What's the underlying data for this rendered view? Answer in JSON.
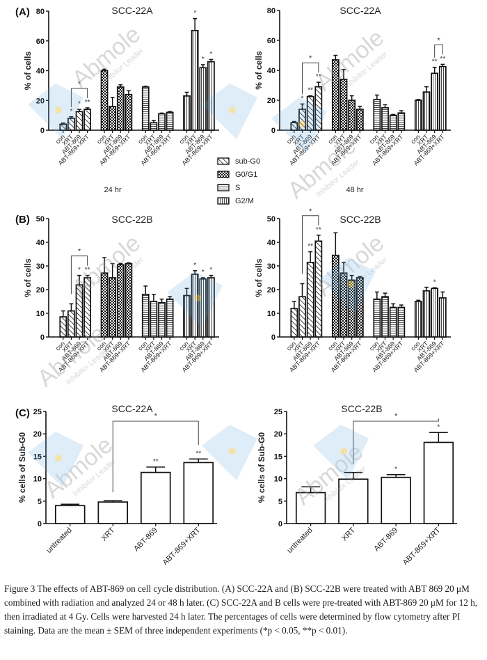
{
  "figure": {
    "panel_labels": [
      "(A)",
      "(B)",
      "(C)"
    ],
    "time_labels": [
      "24 hr",
      "48 hr"
    ],
    "legend": [
      {
        "label": "sub-G0",
        "pattern": "diagonal"
      },
      {
        "label": "G0/G1",
        "pattern": "checker"
      },
      {
        "label": "S",
        "pattern": "horizontal"
      },
      {
        "label": "G2/M",
        "pattern": "vertical"
      }
    ],
    "watermark": {
      "brand": "Abmole",
      "tagline": "Inhibitor Leader",
      "colors": {
        "text": "#9a9a9a",
        "shape": "#5aa5dc",
        "dot": "#f5c54a"
      }
    }
  },
  "chart_data": [
    {
      "id": "A-24hr",
      "type": "bar",
      "title": "SCC-22A",
      "panel": "(A)",
      "subtitle": "24 hr",
      "ylabel": "% of cells",
      "ylim": [
        0,
        80
      ],
      "yticks": [
        0,
        20,
        40,
        60,
        80
      ],
      "categories": [
        "con",
        "XRT",
        "ABT-869",
        "ABT-869+XRT"
      ],
      "series": [
        {
          "name": "sub-G0",
          "values": [
            4,
            8,
            12.5,
            14
          ],
          "errors": [
            0.8,
            1,
            1.5,
            1
          ],
          "sig": [
            "",
            "*",
            "*",
            "**"
          ]
        },
        {
          "name": "G0/G1",
          "values": [
            40,
            16,
            29,
            24
          ],
          "errors": [
            1,
            6,
            1.5,
            2.5
          ],
          "sig": [
            "",
            "",
            "",
            ""
          ]
        },
        {
          "name": "S",
          "values": [
            29,
            5,
            11,
            12
          ],
          "errors": [
            0.5,
            1.5,
            0.5,
            0.5
          ],
          "sig": [
            "",
            "",
            "",
            ""
          ]
        },
        {
          "name": "G2/M",
          "values": [
            23,
            67,
            42,
            46
          ],
          "errors": [
            2.5,
            8,
            2,
            1.5
          ],
          "sig": [
            "",
            "*",
            "*",
            "*"
          ]
        }
      ],
      "brackets": [
        {
          "series": "sub-G0",
          "from": "XRT",
          "to": "ABT-869+XRT",
          "label": "*"
        }
      ]
    },
    {
      "id": "A-48hr",
      "type": "bar",
      "title": "SCC-22A",
      "panel": "",
      "subtitle": "48 hr",
      "ylabel": "% of cells",
      "ylim": [
        0,
        80
      ],
      "yticks": [
        0,
        20,
        40,
        60,
        80
      ],
      "categories": [
        "con",
        "XRT",
        "ABT-869",
        "ABT-869+XRT"
      ],
      "series": [
        {
          "name": "sub-G0",
          "values": [
            5,
            14,
            22.5,
            29
          ],
          "errors": [
            0.8,
            3.5,
            0.5,
            3
          ],
          "sig": [
            "",
            "*",
            "**",
            "**"
          ]
        },
        {
          "name": "G0/G1",
          "values": [
            47,
            34,
            20,
            14
          ],
          "errors": [
            3,
            6.5,
            3,
            2
          ],
          "sig": [
            "",
            "",
            "",
            ""
          ]
        },
        {
          "name": "S",
          "values": [
            20.5,
            15,
            10,
            11.5
          ],
          "errors": [
            3,
            2,
            0.5,
            1.5
          ],
          "sig": [
            "",
            "",
            "",
            ""
          ]
        },
        {
          "name": "G2/M",
          "values": [
            20,
            25.5,
            38,
            42.5
          ],
          "errors": [
            0.5,
            3.5,
            4,
            1.5
          ],
          "sig": [
            "",
            "",
            "**",
            "**"
          ]
        }
      ],
      "brackets": [
        {
          "series": "sub-G0",
          "from": "XRT",
          "to": "ABT-869+XRT",
          "label": "*"
        },
        {
          "series": "G2/M",
          "from": "ABT-869",
          "to": "ABT-869+XRT",
          "label": "*"
        }
      ]
    },
    {
      "id": "B-24hr",
      "type": "bar",
      "title": "SCC-22B",
      "panel": "(B)",
      "subtitle": "",
      "ylabel": "% of cells",
      "ylim": [
        0,
        50
      ],
      "yticks": [
        0,
        10,
        20,
        30,
        40,
        50
      ],
      "categories": [
        "con",
        "XRT",
        "ABT-869",
        "ABT-869+XRT"
      ],
      "series": [
        {
          "name": "sub-G0",
          "values": [
            8.5,
            11,
            22,
            25
          ],
          "errors": [
            2.5,
            3,
            4,
            1
          ],
          "sig": [
            "",
            "",
            "*",
            "**"
          ]
        },
        {
          "name": "G0/G1",
          "values": [
            27,
            25,
            30.5,
            31
          ],
          "errors": [
            6.5,
            6,
            0.5,
            0.3
          ],
          "sig": [
            "",
            "",
            "",
            ""
          ]
        },
        {
          "name": "S",
          "values": [
            18,
            15,
            14.5,
            16
          ],
          "errors": [
            3.5,
            3,
            1.5,
            1
          ],
          "sig": [
            "",
            "",
            "",
            ""
          ]
        },
        {
          "name": "G2/M",
          "values": [
            17.5,
            26.5,
            24.5,
            25
          ],
          "errors": [
            3,
            1.5,
            0.5,
            1
          ],
          "sig": [
            "",
            "*",
            "*",
            "*"
          ]
        }
      ],
      "brackets": [
        {
          "series": "sub-G0",
          "from": "XRT",
          "to": "ABT-869+XRT",
          "label": "*"
        }
      ]
    },
    {
      "id": "B-48hr",
      "type": "bar",
      "title": "SCC-22B",
      "panel": "",
      "subtitle": "",
      "ylabel": "% of cells",
      "ylim": [
        0,
        50
      ],
      "yticks": [
        0,
        10,
        20,
        30,
        40,
        50
      ],
      "categories": [
        "con",
        "XRT",
        "ABT-869",
        "ABT-869+XRT"
      ],
      "series": [
        {
          "name": "sub-G0",
          "values": [
            12,
            17,
            31.5,
            40.5
          ],
          "errors": [
            3,
            5.5,
            4.5,
            2.5
          ],
          "sig": [
            "",
            "",
            "**",
            "**"
          ]
        },
        {
          "name": "G0/G1",
          "values": [
            34.5,
            27,
            24,
            25
          ],
          "errors": [
            9.5,
            4.5,
            2,
            0.5
          ],
          "sig": [
            "",
            "",
            "",
            ""
          ]
        },
        {
          "name": "S",
          "values": [
            16,
            17,
            12.5,
            12.5
          ],
          "errors": [
            3,
            1.5,
            1.5,
            1
          ],
          "sig": [
            "",
            "",
            "",
            ""
          ]
        },
        {
          "name": "G2/M",
          "values": [
            15,
            19.5,
            20.5,
            16.5
          ],
          "errors": [
            0.5,
            1.5,
            0.3,
            2.5
          ],
          "sig": [
            "",
            "",
            "*",
            ""
          ]
        }
      ],
      "brackets": [
        {
          "series": "sub-G0",
          "from": "XRT",
          "to": "ABT-869+XRT",
          "label": "*"
        }
      ]
    },
    {
      "id": "C-SCC-22A",
      "type": "bar",
      "title": "SCC-22A",
      "panel": "(C)",
      "ylabel": "% cells of Sub-G0",
      "ylim": [
        0,
        25
      ],
      "yticks": [
        0,
        5,
        10,
        15,
        20,
        25
      ],
      "categories": [
        "untreated",
        "XRT",
        "ABT-869",
        "ABT-869+XRT"
      ],
      "values": [
        4,
        4.8,
        11.4,
        13.6
      ],
      "errors": [
        0.3,
        0.3,
        1.2,
        0.8
      ],
      "sig": [
        "",
        "",
        "**",
        "**"
      ],
      "brackets": [
        {
          "from": "XRT",
          "to": "ABT-869+XRT",
          "label": "*"
        }
      ]
    },
    {
      "id": "C-SCC-22B",
      "type": "bar",
      "title": "SCC-22B",
      "panel": "",
      "ylabel": "% cells of Sub-G0",
      "ylim": [
        0,
        25
      ],
      "yticks": [
        0,
        5,
        10,
        15,
        20,
        25
      ],
      "categories": [
        "untreated",
        "XRT",
        "ABT-869",
        "ABT-869+XRT"
      ],
      "values": [
        6.9,
        9.9,
        10.3,
        18.1
      ],
      "errors": [
        1.3,
        1.5,
        0.6,
        2.2
      ],
      "sig": [
        "",
        "",
        "*",
        "*"
      ],
      "brackets": [
        {
          "from": "XRT",
          "to": "ABT-869+XRT",
          "label": "*"
        }
      ]
    }
  ],
  "caption": "Figure 3 The effects of ABT-869 on cell cycle distribution. (A) SCC-22A and (B) SCC-22B were treated with ABT 869 20 μM combined with radiation and analyzed 24 or 48 h later. (C) SCC-22A and B cells were pre-treated with ABT-869 20 μM for 12 h, then irradiated at 4 Gy. Cells were harvested 24 h later. The percentages of cells were determined by flow cytometry after PI staining. Data are the mean ± SEM of three independent experiments (*p < 0.05, **p < 0.01)."
}
